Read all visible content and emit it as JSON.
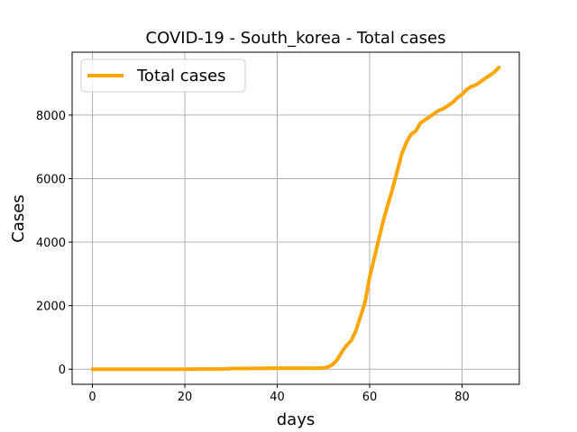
{
  "chart_data": {
    "type": "line",
    "title": "COVID-19 - South_korea - Total cases",
    "xlabel": "days",
    "ylabel": "Cases",
    "xlim": [
      -4.4,
      92.4
    ],
    "ylim": [
      -475,
      9980
    ],
    "xticks": [
      0,
      20,
      40,
      60,
      80
    ],
    "yticks": [
      0,
      2000,
      4000,
      6000,
      8000
    ],
    "grid": true,
    "legend": {
      "position": "top-left"
    },
    "line_color": "#ffa500",
    "series": [
      {
        "name": "Total cases",
        "x": [
          0,
          5,
          10,
          15,
          20,
          25,
          28,
          30,
          35,
          40,
          45,
          48,
          50,
          51,
          52,
          53,
          54,
          55,
          56,
          57,
          58,
          59,
          60,
          61,
          62,
          63,
          64,
          65,
          66,
          67,
          68,
          69,
          70,
          71,
          72,
          73,
          74,
          75,
          76,
          77,
          78,
          79,
          80,
          81,
          82,
          83,
          84,
          85,
          86,
          87,
          88
        ],
        "y": [
          0,
          0,
          0,
          0,
          0,
          5,
          10,
          20,
          25,
          30,
          30,
          30,
          40,
          70,
          150,
          300,
          550,
          750,
          900,
          1200,
          1650,
          2100,
          2900,
          3500,
          4100,
          4700,
          5200,
          5700,
          6250,
          6800,
          7150,
          7400,
          7500,
          7750,
          7850,
          7950,
          8050,
          8150,
          8200,
          8300,
          8400,
          8550,
          8650,
          8800,
          8900,
          8950,
          9050,
          9150,
          9250,
          9350,
          9500
        ]
      }
    ]
  }
}
